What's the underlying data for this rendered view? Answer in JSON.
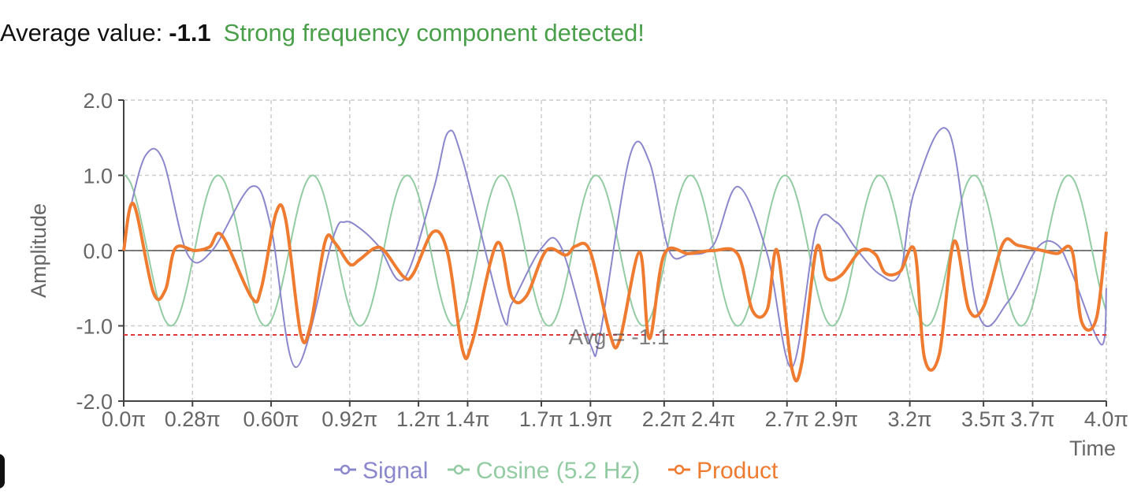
{
  "status": {
    "label": "Average value:",
    "value": "-1.1",
    "message": "Strong frequency component detected!",
    "message_color": "#4aa04a"
  },
  "chart_data": {
    "type": "line",
    "title": "",
    "xlabel": "Time",
    "ylabel": "Amplitude",
    "x_unit": "π",
    "xlim": [
      0,
      4
    ],
    "ylim": [
      -2,
      2
    ],
    "grid": true,
    "legend_position": "bottom-center",
    "x_ticks": [
      0,
      0.28,
      0.6,
      0.92,
      1.2,
      1.4,
      1.7,
      1.9,
      2.2,
      2.4,
      2.7,
      2.9,
      3.2,
      3.5,
      3.7,
      4.0
    ],
    "x_tick_labels": [
      "0.0π",
      "0.28π",
      "0.60π",
      "0.92π",
      "1.2π",
      "1.4π",
      "1.7π",
      "1.9π",
      "2.2π",
      "2.4π",
      "2.7π",
      "2.9π",
      "3.2π",
      "3.5π",
      "3.7π",
      "4.0π"
    ],
    "y_ticks": [
      2,
      1,
      0,
      -1,
      -2
    ],
    "y_tick_labels": [
      "2.0",
      "1.0",
      "0.0",
      "-1.0",
      "-2.0"
    ],
    "reference_line": {
      "y": -1.12,
      "label": "Avg = -1.1",
      "color": "#e03b3b"
    },
    "series": [
      {
        "name": "Signal",
        "color": "#8b87cc",
        "x": [
          0.0,
          0.03,
          0.09,
          0.16,
          0.26,
          0.36,
          0.52,
          0.6,
          0.7,
          0.85,
          0.9,
          0.96,
          1.04,
          1.14,
          1.26,
          1.32,
          1.38,
          1.54,
          1.58,
          1.7,
          1.78,
          1.9,
          1.94,
          2.06,
          2.14,
          2.22,
          2.3,
          2.4,
          2.5,
          2.62,
          2.72,
          2.82,
          2.9,
          2.98,
          3.08,
          3.16,
          3.22,
          3.36,
          3.48,
          3.6,
          3.72,
          3.8,
          3.86,
          3.98,
          4.0
        ],
        "y": [
          0.0,
          0.6,
          1.27,
          1.2,
          -0.05,
          0.0,
          0.85,
          0.3,
          -1.55,
          0.15,
          0.38,
          0.3,
          0.05,
          -0.38,
          0.8,
          1.57,
          1.2,
          -0.85,
          -0.7,
          0.03,
          0.05,
          -1.25,
          -1.1,
          1.25,
          1.18,
          0.0,
          -0.05,
          0.07,
          0.85,
          -0.05,
          -1.55,
          0.3,
          0.38,
          0.03,
          -0.32,
          -0.3,
          0.8,
          1.57,
          -0.85,
          -0.68,
          0.04,
          0.08,
          -0.3,
          -1.25,
          -0.5
        ]
      },
      {
        "name": "Cosine (5.2 Hz)",
        "color": "#93cba3",
        "period": 0.3846,
        "amplitude": 1
      },
      {
        "name": "Product",
        "color": "#ee7b30",
        "x": [
          0.0,
          0.04,
          0.12,
          0.17,
          0.21,
          0.29,
          0.35,
          0.4,
          0.52,
          0.56,
          0.62,
          0.66,
          0.72,
          0.76,
          0.82,
          0.86,
          0.92,
          0.96,
          1.02,
          1.06,
          1.14,
          1.18,
          1.26,
          1.32,
          1.38,
          1.42,
          1.52,
          1.58,
          1.64,
          1.72,
          1.8,
          1.84,
          1.9,
          1.98,
          2.02,
          2.1,
          2.14,
          2.2,
          2.3,
          2.4,
          2.5,
          2.56,
          2.62,
          2.66,
          2.72,
          2.76,
          2.82,
          2.86,
          2.92,
          3.0,
          3.06,
          3.1,
          3.16,
          3.22,
          3.26,
          3.32,
          3.38,
          3.44,
          3.5,
          3.58,
          3.64,
          3.74,
          3.8,
          3.86,
          3.9,
          3.96,
          4.0
        ],
        "y": [
          0.0,
          0.62,
          -0.55,
          -0.52,
          0.03,
          0.0,
          0.05,
          0.2,
          -0.62,
          -0.5,
          0.5,
          0.4,
          -1.1,
          -1.0,
          0.12,
          0.1,
          -0.18,
          -0.12,
          0.03,
          0.0,
          -0.35,
          -0.3,
          0.25,
          -0.05,
          -1.33,
          -1.2,
          0.1,
          -0.62,
          -0.6,
          0.0,
          -0.06,
          0.06,
          -0.02,
          -1.12,
          -1.18,
          -0.02,
          -1.17,
          -0.05,
          -0.04,
          0.0,
          -0.05,
          -0.8,
          -0.78,
          0.0,
          -1.57,
          -1.5,
          0.03,
          -0.36,
          -0.33,
          0.0,
          -0.05,
          -0.3,
          -0.28,
          0.0,
          -1.43,
          -1.38,
          0.12,
          -0.78,
          -0.75,
          0.1,
          0.07,
          0.0,
          -0.04,
          0.0,
          -0.95,
          -0.9,
          0.25
        ]
      }
    ]
  }
}
